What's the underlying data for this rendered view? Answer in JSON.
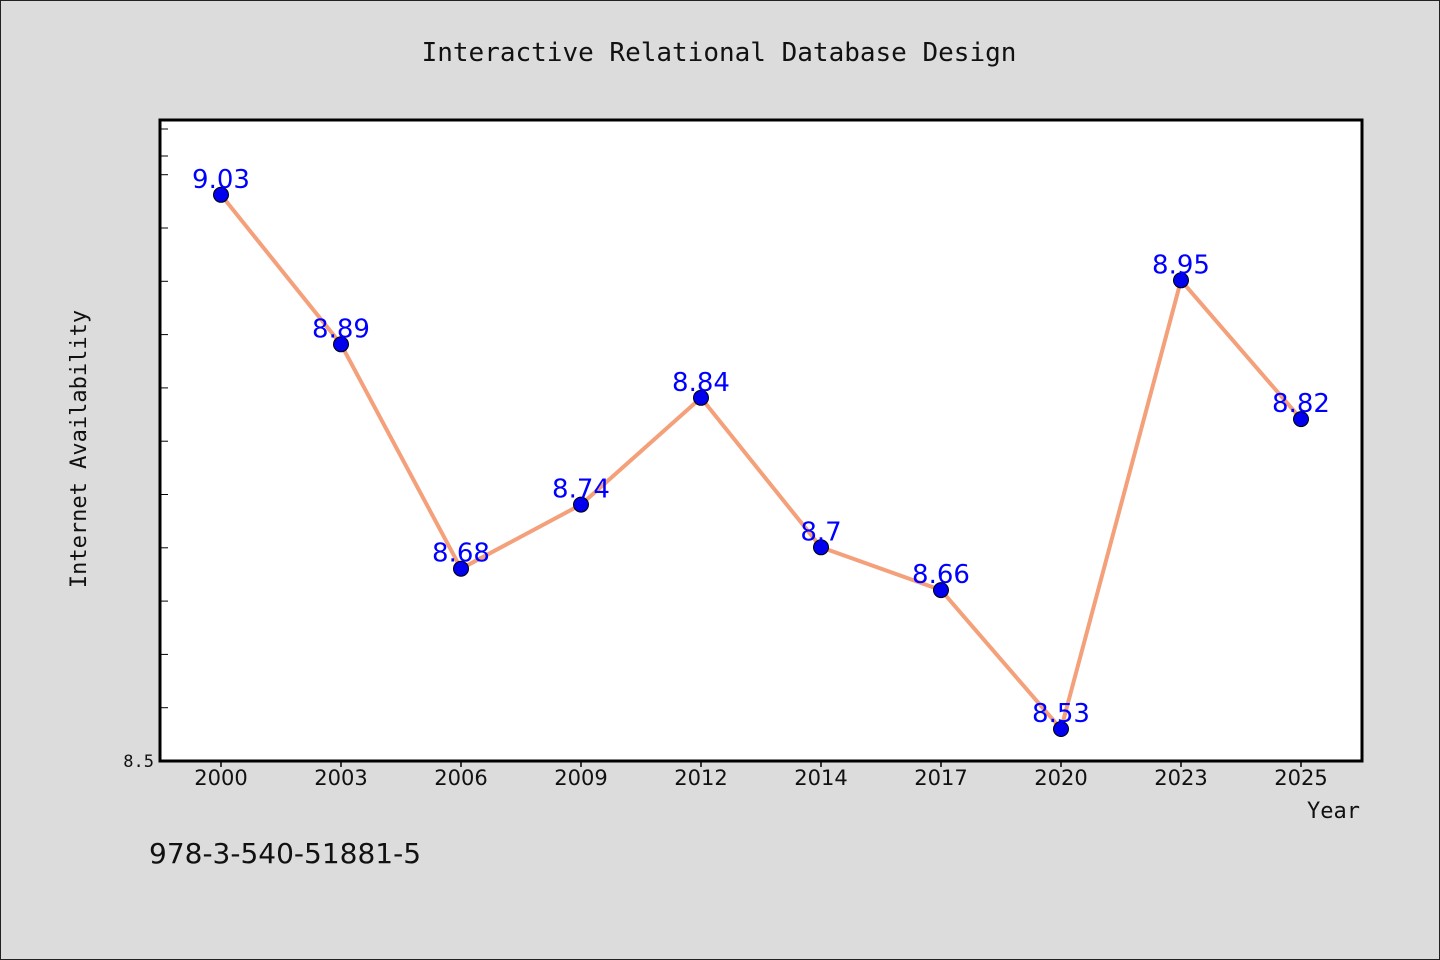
{
  "colors": {
    "background": "#dcdcdc",
    "plot_background": "#ffffff",
    "line": "#f4a07a",
    "marker": "#0000ee",
    "data_label": "#0000ff"
  },
  "footer": {
    "isbn": "978-3-540-51881-5"
  },
  "chart_data": {
    "type": "line",
    "title": "Interactive Relational Database Design",
    "xlabel": "Year",
    "ylabel": "Internet Availability",
    "categories": [
      "2000",
      "2003",
      "2006",
      "2009",
      "2012",
      "2014",
      "2017",
      "2020",
      "2023",
      "2025"
    ],
    "series": [
      {
        "values": [
          9.03,
          8.89,
          8.68,
          8.74,
          8.84,
          8.7,
          8.66,
          8.53,
          8.95,
          8.82
        ],
        "data_labels": [
          "9.03",
          "8.89",
          "8.68",
          "8.74",
          "8.84",
          "8.7",
          "8.66",
          "8.53",
          "8.95",
          "8.82"
        ]
      }
    ],
    "ylim": [
      8.5,
      9.1
    ],
    "yticks": [
      {
        "value": 8.5,
        "label": "8.5"
      }
    ],
    "grid": false,
    "legend": "none"
  }
}
